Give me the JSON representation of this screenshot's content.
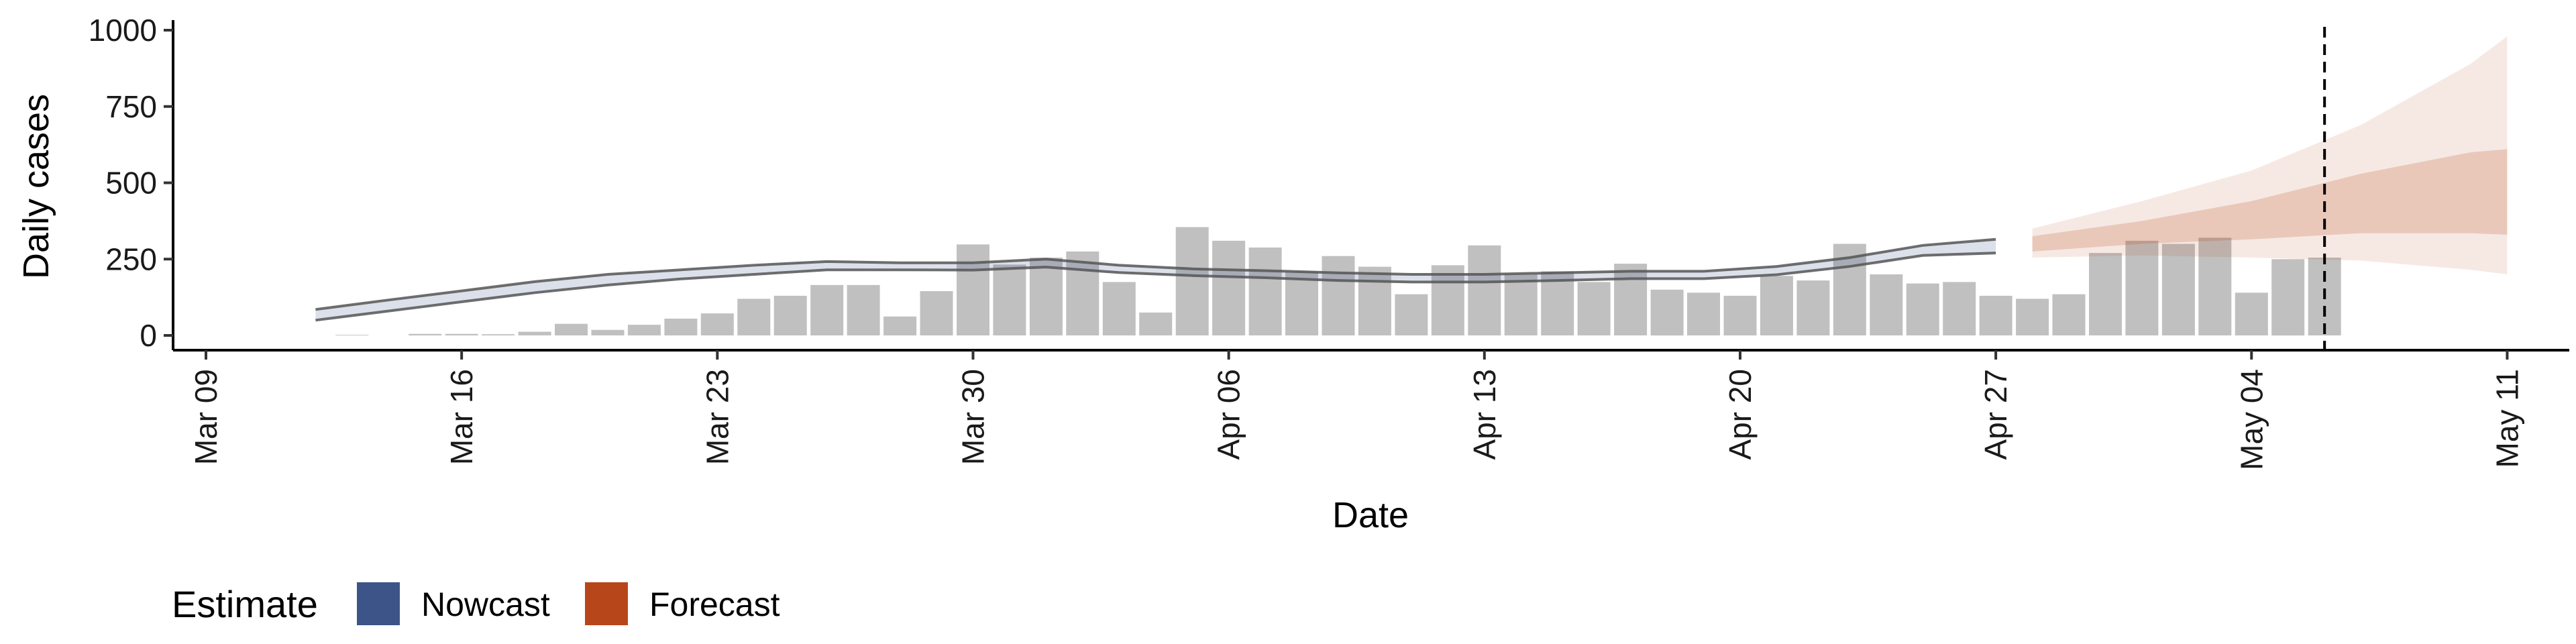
{
  "chart_data": {
    "type": "bar",
    "xlabel": "Date",
    "ylabel": "Daily cases",
    "ylim": [
      0,
      1000
    ],
    "y_ticks": [
      "0",
      "250",
      "500",
      "750",
      "1000"
    ],
    "x_ticks": [
      "Mar 09",
      "Mar 16",
      "Mar 23",
      "Mar 30",
      "Apr 06",
      "Apr 13",
      "Apr 20",
      "Apr 27",
      "May 04",
      "May 11"
    ],
    "x_tick_dates": [
      "2020-03-09",
      "2020-03-16",
      "2020-03-23",
      "2020-03-30",
      "2020-04-06",
      "2020-04-13",
      "2020-04-20",
      "2020-04-27",
      "2020-05-04",
      "2020-05-11"
    ],
    "x_range": [
      "2020-03-09",
      "2020-05-12"
    ],
    "grid": false,
    "reference_line_date": "2020-05-06",
    "bars": {
      "name": "Daily cases",
      "color": "#bdbdbd",
      "dates": [
        "2020-03-13",
        "2020-03-15",
        "2020-03-16",
        "2020-03-17",
        "2020-03-18",
        "2020-03-19",
        "2020-03-20",
        "2020-03-21",
        "2020-03-22",
        "2020-03-23",
        "2020-03-24",
        "2020-03-25",
        "2020-03-26",
        "2020-03-27",
        "2020-03-28",
        "2020-03-29",
        "2020-03-30",
        "2020-03-31",
        "2020-04-01",
        "2020-04-02",
        "2020-04-03",
        "2020-04-04",
        "2020-04-05",
        "2020-04-06",
        "2020-04-07",
        "2020-04-08",
        "2020-04-09",
        "2020-04-10",
        "2020-04-11",
        "2020-04-12",
        "2020-04-13",
        "2020-04-14",
        "2020-04-15",
        "2020-04-16",
        "2020-04-17",
        "2020-04-18",
        "2020-04-19",
        "2020-04-20",
        "2020-04-21",
        "2020-04-22",
        "2020-04-23",
        "2020-04-24",
        "2020-04-25",
        "2020-04-26",
        "2020-04-27",
        "2020-04-28",
        "2020-04-29",
        "2020-04-30",
        "2020-05-01",
        "2020-05-02",
        "2020-05-03",
        "2020-05-04",
        "2020-05-05",
        "2020-05-06"
      ],
      "values": [
        2,
        5,
        5,
        4,
        12,
        38,
        18,
        35,
        55,
        72,
        120,
        130,
        165,
        165,
        62,
        145,
        298,
        232,
        255,
        275,
        175,
        75,
        355,
        310,
        288,
        210,
        260,
        225,
        135,
        230,
        295,
        200,
        210,
        175,
        235,
        150,
        140,
        130,
        195,
        180,
        300,
        200,
        170,
        175,
        130,
        120,
        135,
        270,
        310,
        300,
        320,
        140,
        250,
        255
      ]
    },
    "series": [
      {
        "name": "Nowcast",
        "color": "#3c5488",
        "dates": [
          "2020-03-12",
          "2020-03-14",
          "2020-03-16",
          "2020-03-18",
          "2020-03-20",
          "2020-03-22",
          "2020-03-24",
          "2020-03-26",
          "2020-03-28",
          "2020-03-30",
          "2020-04-01",
          "2020-04-03",
          "2020-04-05",
          "2020-04-07",
          "2020-04-09",
          "2020-04-11",
          "2020-04-13",
          "2020-04-15",
          "2020-04-17",
          "2020-04-19",
          "2020-04-21",
          "2020-04-23",
          "2020-04-25",
          "2020-04-27"
        ],
        "median": [
          68,
          98,
          128,
          158,
          182,
          200,
          215,
          228,
          226,
          226,
          237,
          218,
          207,
          200,
          192,
          188,
          188,
          192,
          198,
          198,
          212,
          240,
          278,
          292
        ],
        "lower_90": [
          50,
          80,
          110,
          140,
          165,
          185,
          200,
          215,
          215,
          214,
          224,
          206,
          196,
          189,
          180,
          175,
          175,
          180,
          186,
          186,
          199,
          226,
          262,
          270
        ],
        "upper_90": [
          85,
          116,
          146,
          176,
          200,
          215,
          230,
          242,
          238,
          238,
          250,
          230,
          218,
          212,
          205,
          200,
          200,
          205,
          210,
          210,
          226,
          255,
          295,
          315
        ]
      },
      {
        "name": "Forecast",
        "color": "#b8461b",
        "dates": [
          "2020-04-28",
          "2020-05-01",
          "2020-05-04",
          "2020-05-07",
          "2020-05-10",
          "2020-05-11"
        ],
        "median": [
          300,
          330,
          375,
          440,
          505,
          510
        ],
        "lower_90": [
          255,
          262,
          255,
          245,
          215,
          200
        ],
        "upper_90": [
          350,
          440,
          540,
          690,
          890,
          980
        ],
        "lower_50": [
          275,
          300,
          315,
          335,
          335,
          330
        ],
        "upper_50": [
          325,
          375,
          440,
          530,
          600,
          610
        ]
      }
    ],
    "legend": {
      "title": "Estimate",
      "placement": "bottom-left",
      "items": [
        {
          "label": "Nowcast",
          "color": "#3c5488"
        },
        {
          "label": "Forecast",
          "color": "#b8461b"
        }
      ]
    }
  }
}
